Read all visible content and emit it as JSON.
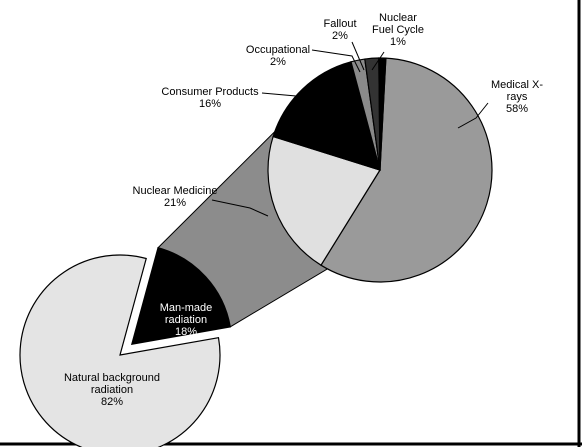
{
  "chart_data": [
    {
      "type": "pie",
      "categories": [
        "Natural background\nradiation",
        "Man-made\nradiation"
      ],
      "values": [
        82,
        18
      ],
      "value_labels": [
        "82%",
        "18%"
      ],
      "colors": [
        "#e4e4e4",
        "#000000"
      ]
    },
    {
      "type": "pie",
      "categories": [
        "Medical X-rays",
        "Nuclear  Medicine",
        "Consumer Products",
        "Occupational",
        "Fallout",
        "Nuclear\nFuel Cycle"
      ],
      "values": [
        58,
        21,
        16,
        2,
        2,
        1
      ],
      "value_labels": [
        "58%",
        "21%",
        "16%",
        "2%",
        "2%",
        "1%"
      ],
      "colors": [
        "#9a9a9a",
        "#e0e0e0",
        "#000000",
        "#8a8a8a",
        "#333333",
        "#000000"
      ]
    }
  ]
}
